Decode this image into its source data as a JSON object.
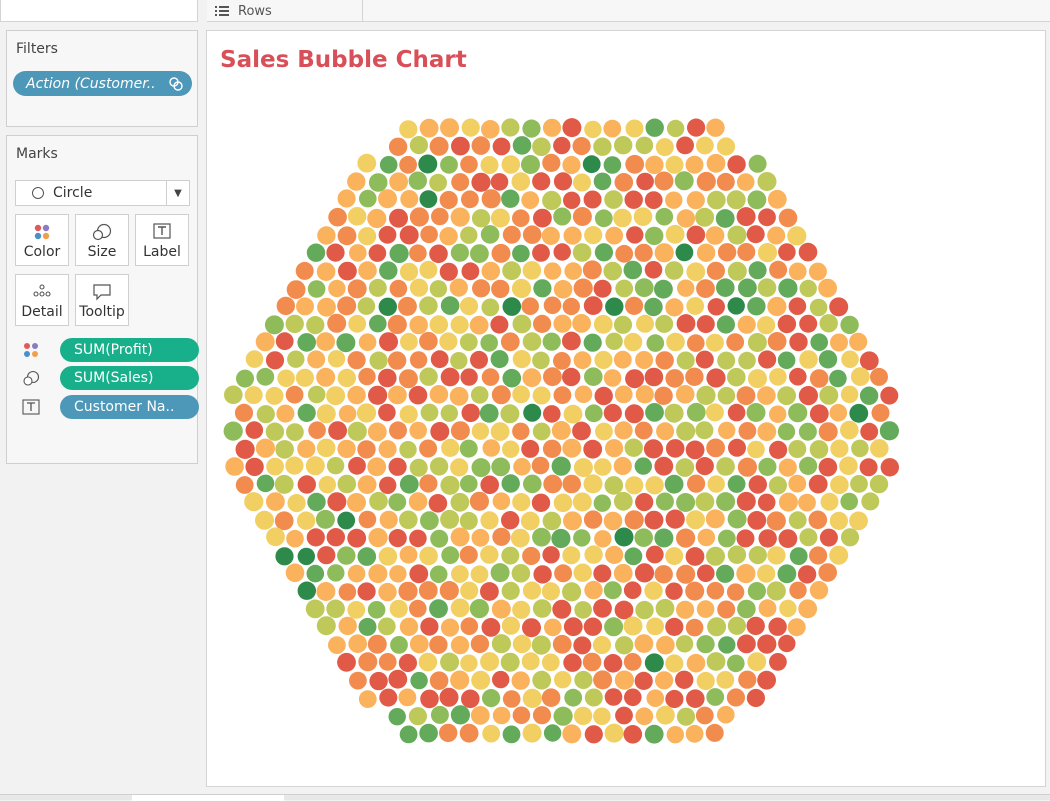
{
  "shelves": {
    "rows_label": "Rows"
  },
  "filters": {
    "title": "Filters",
    "pill": "Action (Customer.."
  },
  "marks": {
    "title": "Marks",
    "mark_type": "Circle",
    "buttons": {
      "color": "Color",
      "size": "Size",
      "label": "Label",
      "detail": "Detail",
      "tooltip": "Tooltip"
    },
    "encodings": [
      {
        "field": "SUM(Profit)",
        "channel": "color",
        "pill_color": "#18b08a"
      },
      {
        "field": "SUM(Sales)",
        "channel": "size",
        "pill_color": "#18b08a"
      },
      {
        "field": "Customer Na..",
        "channel": "label",
        "pill_color": "#4d97b8"
      }
    ]
  },
  "chart_data": {
    "type": "packed-bubble",
    "title": "Sales Bubble Chart",
    "size_measure": "SUM(Sales)",
    "color_measure": "SUM(Profit)",
    "color_scale": [
      "#e05a47",
      "#f28c4e",
      "#fbb25c",
      "#f2cf63",
      "#bfc95a",
      "#8fbc5a",
      "#63aa5a",
      "#2e8a4a"
    ]
  }
}
